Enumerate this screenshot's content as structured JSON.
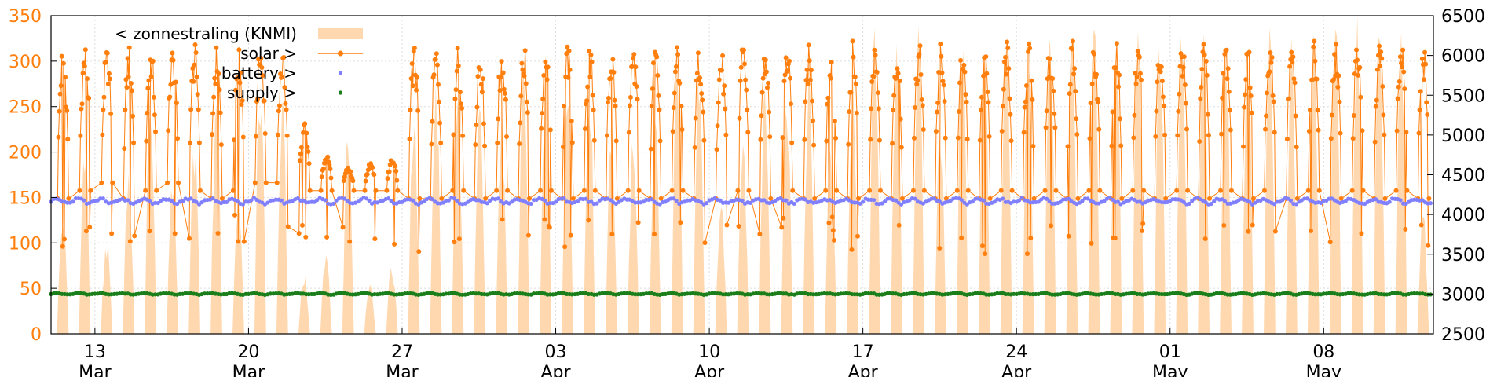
{
  "chart_data": {
    "type": "line",
    "title": "",
    "xlabel": "",
    "ylabel": "",
    "x_range": [
      "2024-03-11",
      "2024-05-12"
    ],
    "ylim": [
      0,
      350
    ],
    "y2lim": [
      2500,
      6500
    ],
    "y_ticks": [
      0,
      50,
      100,
      150,
      200,
      250,
      300,
      350
    ],
    "y2_ticks": [
      2500,
      3000,
      3500,
      4000,
      4500,
      5000,
      5500,
      6000,
      6500
    ],
    "x_tick_labels": [
      {
        "date": "2024-03-13",
        "day": "13",
        "month": "Mar"
      },
      {
        "date": "2024-03-20",
        "day": "20",
        "month": "Mar"
      },
      {
        "date": "2024-03-27",
        "day": "27",
        "month": "Mar"
      },
      {
        "date": "2024-04-03",
        "day": "03",
        "month": "Apr"
      },
      {
        "date": "2024-04-10",
        "day": "10",
        "month": "Apr"
      },
      {
        "date": "2024-04-17",
        "day": "17",
        "month": "Apr"
      },
      {
        "date": "2024-04-24",
        "day": "24",
        "month": "Apr"
      },
      {
        "date": "2024-05-01",
        "day": "01",
        "month": "May"
      },
      {
        "date": "2024-05-08",
        "day": "08",
        "month": "May"
      }
    ],
    "grid": true,
    "legend_position": "top-left",
    "series": [
      {
        "name": "< zonnestraling (KNMI)",
        "axis": "left",
        "style": "filled-area",
        "color": "#ffd8b0",
        "daily_peak": [
          120,
          200,
          95,
          160,
          250,
          170,
          200,
          230,
          150,
          260,
          240,
          60,
          80,
          200,
          50,
          70,
          230,
          260,
          240,
          250,
          220,
          270,
          280,
          250,
          260,
          230,
          200,
          210,
          290,
          280,
          140,
          200,
          260,
          250,
          270,
          200,
          280,
          300,
          290,
          310,
          220,
          320,
          300,
          310,
          300,
          310,
          290,
          310,
          320,
          310,
          300,
          310,
          320,
          300,
          310,
          320,
          300,
          310,
          320,
          330,
          320,
          310
        ]
      },
      {
        "name": "solar >",
        "axis": "right",
        "style": "line-points",
        "color": "#ff7f0e",
        "daily_peak": [
          6150,
          6150,
          6100,
          6150,
          6150,
          6100,
          6150,
          6150,
          6100,
          6150,
          6050,
          5200,
          4750,
          4600,
          4650,
          4700,
          6150,
          6150,
          6150,
          6150,
          6150,
          6150,
          6150,
          6150,
          6150,
          6150,
          6150,
          6150,
          6150,
          6150,
          6100,
          6150,
          6150,
          6150,
          6150,
          6150,
          6200,
          6200,
          6200,
          6200,
          6200,
          6200,
          6200,
          6200,
          6200,
          6200,
          6200,
          6200,
          6200,
          6200,
          6200,
          6200,
          6200,
          6200,
          6200,
          6200,
          6200,
          6200,
          6200,
          6200,
          6200,
          6150
        ],
        "daily_low": [
          4200,
          4300,
          4400,
          4200,
          4300,
          4400,
          4300,
          4200,
          4300,
          4400,
          4400,
          4300,
          4300,
          4300,
          4300,
          4300,
          4200,
          4200,
          4300,
          4200,
          4300,
          4200,
          4300,
          4200,
          4300,
          4200,
          4300,
          4200,
          4300,
          4200,
          4200,
          4300,
          4200,
          4300,
          4200,
          4300,
          4200,
          4300,
          4200,
          4300,
          4200,
          4300,
          4200,
          4300,
          4200,
          4300,
          4200,
          4300,
          4200,
          4300,
          4200,
          4300,
          4200,
          4300,
          4200,
          4300,
          4200,
          4300,
          4200,
          4300,
          4200,
          4300
        ]
      },
      {
        "name": "battery >",
        "axis": "left",
        "style": "points",
        "color": "#8080ff",
        "level": 146
      },
      {
        "name": "supply >",
        "axis": "left",
        "style": "points",
        "color": "#1a7f1a",
        "level": 44
      }
    ]
  },
  "colors": {
    "left_axis": "#ff7f0e",
    "right_axis": "#000000",
    "grid": "#dddddd"
  }
}
